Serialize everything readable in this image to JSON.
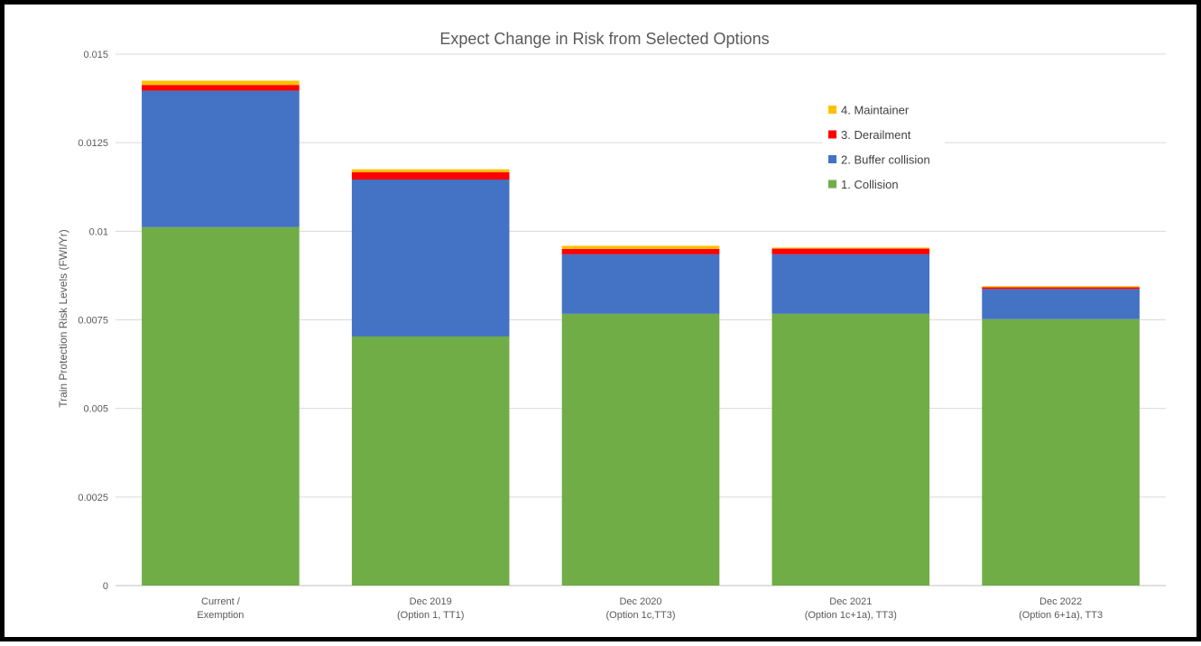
{
  "chart_data": {
    "type": "bar",
    "stacked": true,
    "title": "Expect Change in Risk from Selected Options",
    "xlabel": "",
    "ylabel": "Train Protection Risk Levels (FWI/Yr)",
    "ylim": [
      0,
      0.015
    ],
    "yticks": [
      "0",
      "0.0025",
      "0.005",
      "0.0075",
      "0.01",
      "0.0125",
      "0.015"
    ],
    "categories": [
      [
        "Current /",
        "Exemption"
      ],
      [
        "Dec 2019",
        "(Option 1, TT1)"
      ],
      [
        "Dec 2020",
        "(Option 1c,TT3)"
      ],
      [
        "Dec 2021",
        "(Option 1c+1a), TT3)"
      ],
      [
        "Dec 2022",
        "(Option 6+1a), TT3"
      ]
    ],
    "series": [
      {
        "name": "1. Collision",
        "color": "#70AD47",
        "values": [
          0.01012,
          0.00703,
          0.00767,
          0.00767,
          0.00752
        ]
      },
      {
        "name": "2. Buffer collision",
        "color": "#4472C4",
        "values": [
          0.00385,
          0.00443,
          0.00168,
          0.00168,
          0.00085
        ]
      },
      {
        "name": "3. Derailment",
        "color": "#FF0000",
        "values": [
          0.00016,
          0.00021,
          0.00015,
          0.00016,
          5e-05
        ]
      },
      {
        "name": "4. Maintainer",
        "color": "#FFC000",
        "values": [
          0.00012,
          8e-05,
          9e-05,
          3e-05,
          3e-05
        ]
      }
    ],
    "grid": true,
    "legend_position": "top-right"
  }
}
